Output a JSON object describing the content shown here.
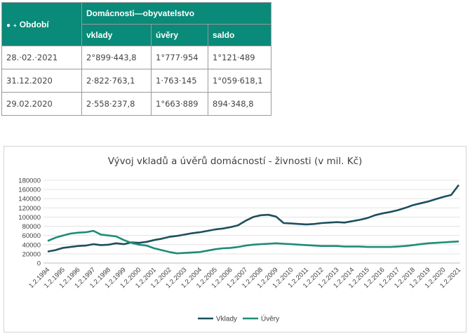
{
  "table": {
    "period_header": "Období",
    "group_header": "Domácnosti—obyvatelstvo",
    "columns": [
      "vklady",
      "úvěry",
      "saldo"
    ],
    "rows": [
      {
        "period": "28.·02.·2021",
        "vklady": "2°899·443,8",
        "uvery": "1°777·954",
        "saldo": "1°121·489"
      },
      {
        "period": "31.12.2020",
        "vklady": "2·822·763,1",
        "uvery": "1·763·145",
        "saldo": "1°059·618,1"
      },
      {
        "period": "29.02.2020",
        "vklady": "2·558·237,8",
        "uvery": "1°663·889",
        "saldo": "894·348,8"
      }
    ]
  },
  "chart_data": {
    "type": "line",
    "title": "Vývoj vkladů a úvěrů domácností - živnosti (v mil. Kč)",
    "xlabel": "",
    "ylabel": "",
    "ylim": [
      0,
      180000
    ],
    "yticks": [
      0,
      20000,
      40000,
      60000,
      80000,
      100000,
      120000,
      140000,
      160000,
      180000
    ],
    "x_tick_labels": [
      "1.2.1994",
      "1.2.1995",
      "1.2.1996",
      "1.2.1997",
      "1.2.1998",
      "1.2.1999",
      "1.2.2000",
      "1.2.2001",
      "1.2.2002",
      "1.2.2003",
      "1.2.2004",
      "1.2.2005",
      "1.2.2006",
      "1.2.2007",
      "1.2.2008",
      "1.2.2009",
      "1.2.2010",
      "1.2.2011",
      "1.2.2012",
      "1.2.2013",
      "1.2.2014",
      "1.2.2015",
      "1.2.2016",
      "1.2.2017",
      "1.2.2018",
      "1.2.2019",
      "1.2.2020",
      "1.2.2021"
    ],
    "x": [
      "1.2.1994",
      "1.8.1994",
      "1.2.1995",
      "1.8.1995",
      "1.2.1996",
      "1.8.1996",
      "1.2.1997",
      "1.8.1997",
      "1.2.1998",
      "1.8.1998",
      "1.2.1999",
      "1.8.1999",
      "1.2.2000",
      "1.8.2000",
      "1.2.2001",
      "1.8.2001",
      "1.2.2002",
      "1.8.2002",
      "1.2.2003",
      "1.8.2003",
      "1.2.2004",
      "1.8.2004",
      "1.2.2005",
      "1.8.2005",
      "1.2.2006",
      "1.8.2006",
      "1.2.2007",
      "1.8.2007",
      "1.2.2008",
      "1.8.2008",
      "1.2.2009",
      "1.8.2009",
      "1.2.2010",
      "1.8.2010",
      "1.2.2011",
      "1.8.2011",
      "1.2.2012",
      "1.8.2012",
      "1.2.2013",
      "1.8.2013",
      "1.2.2014",
      "1.8.2014",
      "1.2.2015",
      "1.8.2015",
      "1.2.2016",
      "1.8.2016",
      "1.2.2017",
      "1.8.2017",
      "1.2.2018",
      "1.8.2018",
      "1.2.2019",
      "1.8.2019",
      "1.2.2020",
      "1.8.2020",
      "1.2.2021"
    ],
    "series": [
      {
        "name": "Vklady",
        "color": "#1d4f5e",
        "values": [
          25000,
          28000,
          33000,
          35000,
          37000,
          38000,
          41000,
          39000,
          40000,
          43000,
          41000,
          45000,
          44000,
          46000,
          50000,
          53000,
          57000,
          59000,
          62000,
          65000,
          67000,
          70000,
          73000,
          75000,
          78000,
          82000,
          92000,
          100000,
          104000,
          105000,
          101000,
          87000,
          86000,
          85000,
          84000,
          85000,
          87000,
          88000,
          89000,
          88000,
          91000,
          94000,
          98000,
          104000,
          108000,
          111000,
          115000,
          120000,
          126000,
          130000,
          134000,
          139000,
          144000,
          148000,
          170000
        ]
      },
      {
        "name": "Úvěry",
        "color": "#1e8c78",
        "values": [
          48000,
          55000,
          60000,
          64000,
          66000,
          67000,
          70000,
          62000,
          60000,
          58000,
          50000,
          44000,
          40000,
          38000,
          32000,
          28000,
          24000,
          21000,
          22000,
          23000,
          24000,
          27000,
          30000,
          32000,
          33000,
          35000,
          38000,
          40000,
          41000,
          42000,
          43000,
          42000,
          41000,
          40000,
          39000,
          38000,
          37000,
          37000,
          37000,
          36000,
          36000,
          36000,
          35000,
          35000,
          35000,
          35000,
          36000,
          37000,
          39000,
          41000,
          43000,
          44000,
          45000,
          46000,
          47000
        ]
      }
    ],
    "legend_position": "bottom",
    "grid": true
  }
}
